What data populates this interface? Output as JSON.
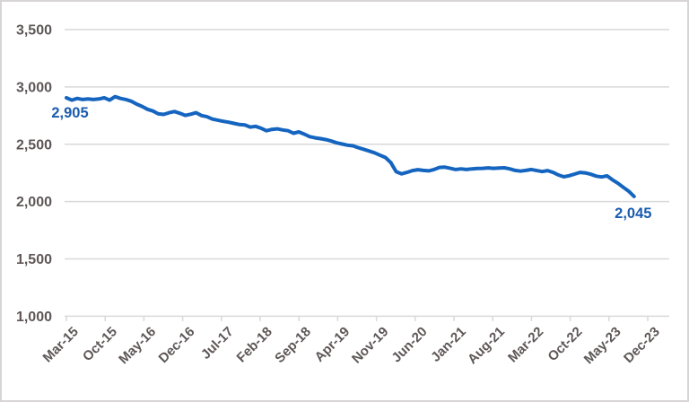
{
  "chart_data": {
    "type": "line",
    "title": "",
    "xlabel": "",
    "ylabel": "",
    "ylim": [
      1000,
      3500
    ],
    "grid": true,
    "legend_position": "none",
    "y_ticks": [
      3500,
      3000,
      2500,
      2000,
      1500,
      1000
    ],
    "y_tick_labels": [
      "3,500",
      "3,000",
      "2,500",
      "2,000",
      "1,500",
      "1,000"
    ],
    "x_tick_labels": [
      "Mar-15",
      "Oct-15",
      "May-16",
      "Dec-16",
      "Jul-17",
      "Feb-18",
      "Sep-18",
      "Apr-19",
      "Nov-19",
      "Jun-20",
      "Jan-21",
      "Aug-21",
      "Mar-22",
      "Oct-22",
      "May-23",
      "Dec-23"
    ],
    "x": [
      "Mar-15",
      "Apr-15",
      "May-15",
      "Jun-15",
      "Jul-15",
      "Aug-15",
      "Sep-15",
      "Oct-15",
      "Nov-15",
      "Dec-15",
      "Jan-16",
      "Feb-16",
      "Mar-16",
      "Apr-16",
      "May-16",
      "Jun-16",
      "Jul-16",
      "Aug-16",
      "Sep-16",
      "Oct-16",
      "Nov-16",
      "Dec-16",
      "Jan-17",
      "Feb-17",
      "Mar-17",
      "Apr-17",
      "May-17",
      "Jun-17",
      "Jul-17",
      "Aug-17",
      "Sep-17",
      "Oct-17",
      "Nov-17",
      "Dec-17",
      "Jan-18",
      "Feb-18",
      "Mar-18",
      "Apr-18",
      "May-18",
      "Jun-18",
      "Jul-18",
      "Aug-18",
      "Sep-18",
      "Oct-18",
      "Nov-18",
      "Dec-18",
      "Jan-19",
      "Feb-19",
      "Mar-19",
      "Apr-19",
      "May-19",
      "Jun-19",
      "Jul-19",
      "Aug-19",
      "Sep-19",
      "Oct-19",
      "Nov-19",
      "Dec-19",
      "Jan-20",
      "Feb-20",
      "Mar-20",
      "Apr-20",
      "May-20",
      "Jun-20",
      "Jul-20",
      "Aug-20",
      "Sep-20",
      "Oct-20",
      "Nov-20",
      "Dec-20",
      "Jan-21",
      "Feb-21",
      "Mar-21",
      "Apr-21",
      "May-21",
      "Jun-21",
      "Jul-21",
      "Aug-21",
      "Sep-21",
      "Oct-21",
      "Nov-21",
      "Dec-21",
      "Jan-22",
      "Feb-22",
      "Mar-22",
      "Apr-22",
      "May-22",
      "Jun-22",
      "Jul-22",
      "Aug-22",
      "Sep-22",
      "Oct-22",
      "Nov-22",
      "Dec-22",
      "Jan-23",
      "Feb-23",
      "Mar-23",
      "Apr-23",
      "May-23",
      "Jun-23",
      "Jul-23",
      "Aug-23",
      "Sep-23",
      "Oct-23",
      "Nov-23",
      "Dec-23"
    ],
    "values": [
      2905,
      2885,
      2900,
      2890,
      2895,
      2890,
      2895,
      2905,
      2885,
      2915,
      2900,
      2890,
      2875,
      2850,
      2830,
      2805,
      2790,
      2765,
      2760,
      2775,
      2785,
      2770,
      2752,
      2762,
      2775,
      2750,
      2740,
      2720,
      2710,
      2700,
      2692,
      2682,
      2672,
      2668,
      2650,
      2656,
      2640,
      2618,
      2630,
      2634,
      2625,
      2618,
      2596,
      2608,
      2588,
      2566,
      2556,
      2549,
      2540,
      2528,
      2512,
      2502,
      2492,
      2486,
      2470,
      2456,
      2441,
      2425,
      2405,
      2385,
      2340,
      2260,
      2242,
      2255,
      2270,
      2278,
      2272,
      2268,
      2280,
      2298,
      2300,
      2290,
      2280,
      2285,
      2280,
      2285,
      2288,
      2290,
      2294,
      2290,
      2292,
      2295,
      2285,
      2272,
      2266,
      2272,
      2280,
      2270,
      2262,
      2270,
      2255,
      2232,
      2216,
      2226,
      2240,
      2255,
      2250,
      2238,
      2222,
      2215,
      2224,
      2190,
      2160,
      2125,
      2090,
      2045
    ],
    "first_point_label": "2,905",
    "last_point_label": "2,045",
    "colors": {
      "line": "#1565c0",
      "point_label": "#1a5cb0",
      "axis_text": "#5f5757",
      "gridline": "#d9d9d9",
      "border": "#d7d5d5",
      "background": "#ffffff"
    }
  }
}
